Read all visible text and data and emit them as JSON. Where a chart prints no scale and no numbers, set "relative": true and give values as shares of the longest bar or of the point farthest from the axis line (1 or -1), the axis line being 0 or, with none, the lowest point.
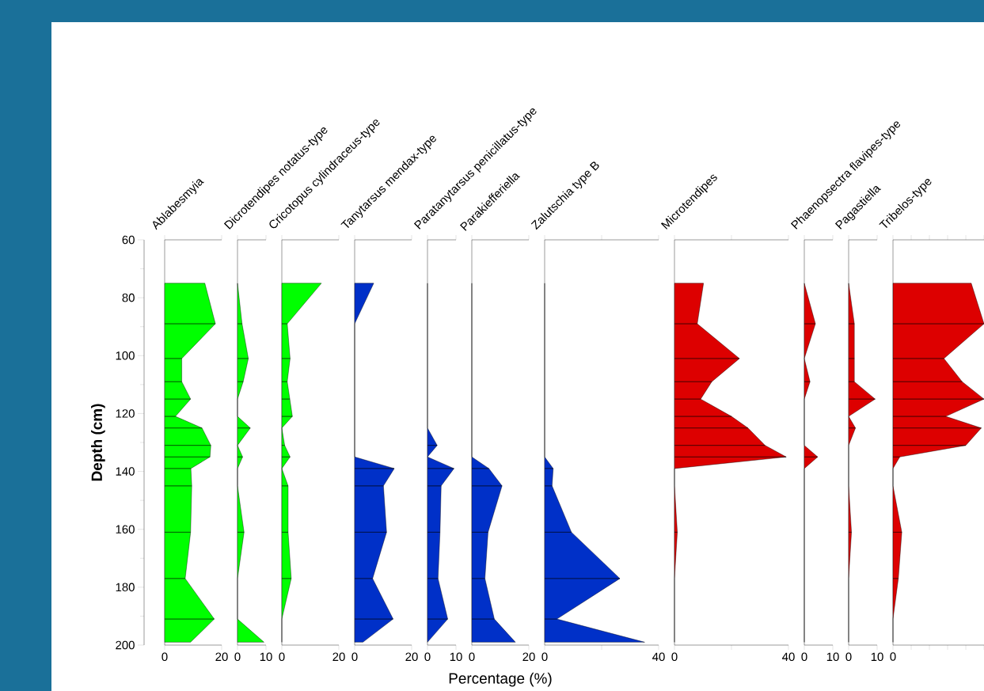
{
  "chart_data": [
    {
      "type": "area",
      "orientation": "horizontal",
      "title": "Ablabesmyia",
      "ylabel": "Depth (cm)",
      "color": "#00ff00",
      "x": [
        75,
        89,
        101,
        109,
        115,
        121,
        125,
        131,
        135,
        139,
        145,
        161,
        177,
        191,
        199
      ],
      "values": [
        14.1,
        17.8,
        6.0,
        6.0,
        9.1,
        3.8,
        13.1,
        16.2,
        15.9,
        9.2,
        9.5,
        9.1,
        7.2,
        17.4,
        9.1
      ],
      "xlim": [
        0,
        20
      ],
      "xticks": [
        0,
        20
      ],
      "ylim": [
        200,
        60
      ],
      "yticks": [
        60,
        80,
        100,
        120,
        140,
        160,
        180,
        200
      ]
    },
    {
      "type": "area",
      "orientation": "horizontal",
      "title": "Dicrotendipes notatus-type",
      "color": "#00ff00",
      "x": [
        75,
        89,
        101,
        109,
        115,
        121,
        125,
        131,
        135,
        139,
        145,
        161,
        177,
        191,
        199
      ],
      "values": [
        0,
        1.6,
        3.8,
        2.0,
        0,
        0,
        4.5,
        0,
        1.8,
        0,
        0,
        2.3,
        0,
        0,
        9.3
      ],
      "xlim": [
        0,
        10
      ],
      "xticks": [
        0,
        10
      ],
      "ylim": [
        200,
        60
      ],
      "tick_labels": "x"
    },
    {
      "type": "area",
      "orientation": "horizontal",
      "title": "Cricotopus cylindraceus-type",
      "color": "#00ff00",
      "x": [
        75,
        89,
        101,
        109,
        115,
        121,
        125,
        131,
        135,
        139,
        145,
        161,
        177,
        191,
        199
      ],
      "values": [
        13.9,
        1.9,
        2.9,
        1.9,
        2.8,
        3.7,
        0,
        1.0,
        2.9,
        0,
        2.2,
        2.2,
        3.3,
        0,
        0
      ],
      "xlim": [
        0,
        20
      ],
      "xticks": [
        0,
        20
      ],
      "ylim": [
        200,
        60
      ],
      "tick_labels": "x"
    },
    {
      "type": "area",
      "orientation": "horizontal",
      "title": "Tanytarsus mendax-type",
      "color": "#0030c8",
      "x": [
        75,
        89,
        101,
        109,
        115,
        121,
        125,
        131,
        135,
        139,
        145,
        161,
        177,
        191,
        199
      ],
      "values": [
        6.7,
        0,
        0,
        0,
        0,
        0,
        0,
        0,
        0,
        13.9,
        10.1,
        11.2,
        6.3,
        13.5,
        2.9
      ],
      "xlim": [
        0,
        20
      ],
      "xticks": [
        0,
        20
      ],
      "ylim": [
        200,
        60
      ],
      "tick_labels": "x"
    },
    {
      "type": "area",
      "orientation": "horizontal",
      "title": "Paratanytarsus penicillatus-type",
      "color": "#0030c8",
      "x": [
        75,
        89,
        101,
        109,
        115,
        121,
        125,
        131,
        135,
        139,
        145,
        161,
        177,
        191,
        199
      ],
      "values": [
        0,
        0,
        0,
        0,
        0,
        0,
        0,
        3.4,
        0,
        9.3,
        4.8,
        4.4,
        3.7,
        7.1,
        0
      ],
      "xlim": [
        0,
        10
      ],
      "xticks": [
        0,
        10
      ],
      "ylim": [
        200,
        60
      ],
      "tick_labels": "x"
    },
    {
      "type": "area",
      "orientation": "horizontal",
      "title": "Parakiefferiella",
      "xlabel": "Percentage (%)",
      "color": "#0030c8",
      "x": [
        75,
        89,
        101,
        109,
        115,
        121,
        125,
        131,
        135,
        139,
        145,
        161,
        177,
        191,
        199
      ],
      "values": [
        0,
        0,
        0,
        0,
        0,
        0,
        0,
        0,
        0,
        6.0,
        10.6,
        5.7,
        4.6,
        7.9,
        15.3
      ],
      "xlim": [
        0,
        20
      ],
      "xticks": [
        0,
        20
      ],
      "ylim": [
        200,
        60
      ],
      "tick_labels": "x"
    },
    {
      "type": "area",
      "orientation": "horizontal",
      "title": "Zalutschia type B",
      "color": "#0030c8",
      "x": [
        75,
        89,
        101,
        109,
        115,
        121,
        125,
        131,
        135,
        139,
        145,
        161,
        177,
        191,
        199
      ],
      "values": [
        0,
        0,
        0,
        0,
        0,
        0,
        0,
        0,
        0,
        3.0,
        2.6,
        9.4,
        26.4,
        4.3,
        35.1
      ],
      "xlim": [
        0,
        40
      ],
      "xticks": [
        0,
        {
          "value": 20,
          "label": null
        },
        40
      ],
      "ylim": [
        200,
        60
      ],
      "tick_labels": "x"
    },
    {
      "type": "area",
      "orientation": "horizontal",
      "title": "Microtendipes",
      "color": "#dd0000",
      "x": [
        75,
        89,
        101,
        109,
        115,
        121,
        125,
        131,
        135,
        139,
        145,
        161,
        177,
        191,
        199
      ],
      "values": [
        10.2,
        8.0,
        22.8,
        13.1,
        9.2,
        20.0,
        25.8,
        31.8,
        39.2,
        0,
        0,
        1.0,
        0,
        0,
        0
      ],
      "xlim": [
        0,
        40
      ],
      "xticks": [
        0,
        {
          "value": 20,
          "label": null
        },
        40
      ],
      "ylim": [
        200,
        60
      ],
      "tick_labels": "x"
    },
    {
      "type": "area",
      "orientation": "horizontal",
      "title": "Phaenopsectra flavipes-type",
      "color": "#dd0000",
      "x": [
        75,
        89,
        101,
        109,
        115,
        121,
        125,
        131,
        135,
        139,
        145,
        161,
        177,
        191,
        199
      ],
      "values": [
        0,
        3.9,
        0,
        2.0,
        0,
        0,
        0,
        0,
        4.7,
        0,
        0,
        0,
        0,
        0,
        0
      ],
      "xlim": [
        0,
        10
      ],
      "xticks": [
        0,
        10
      ],
      "ylim": [
        200,
        60
      ],
      "tick_labels": "x"
    },
    {
      "type": "area",
      "orientation": "horizontal",
      "title": "Pagastiella",
      "color": "#dd0000",
      "x": [
        75,
        89,
        101,
        109,
        115,
        121,
        125,
        131,
        135,
        139,
        145,
        161,
        177,
        191,
        199
      ],
      "values": [
        0,
        2.0,
        2.0,
        2.0,
        9.3,
        0,
        2.4,
        0,
        0,
        0,
        0,
        1.0,
        0,
        0,
        0
      ],
      "xlim": [
        0,
        10
      ],
      "xticks": [
        0,
        10
      ],
      "ylim": [
        200,
        60
      ],
      "tick_labels": "x"
    },
    {
      "type": "area",
      "orientation": "horizontal",
      "title": "Tribelos-type",
      "color": "#dd0000",
      "x": [
        75,
        89,
        101,
        109,
        115,
        121,
        125,
        131,
        135,
        139,
        145,
        161,
        177,
        191,
        199
      ],
      "values": [
        0.86,
        1,
        0.56,
        0.76,
        1,
        0.58,
        0.97,
        0.8,
        0.075,
        0,
        0,
        0.097,
        0.059,
        0,
        0
      ],
      "relative": true,
      "annotations": [
        "0"
      ],
      "ylim": [
        200,
        60
      ],
      "tick_labels": "x"
    }
  ]
}
